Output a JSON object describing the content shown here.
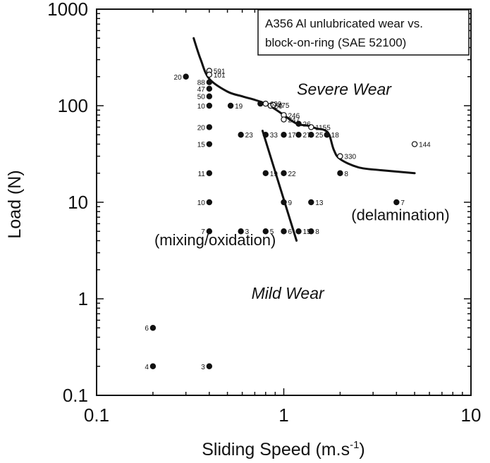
{
  "chart_data": {
    "type": "scatter",
    "title": "",
    "xlabel": "Sliding Speed (m.s-1)",
    "xlabel_main": "Sliding Speed (m.s",
    "xlabel_sup": "-1",
    "xlabel_end": ")",
    "ylabel": "Load (N)",
    "x_scale": "log",
    "y_scale": "log",
    "xlim": [
      0.1,
      10
    ],
    "ylim": [
      0.1,
      1000
    ],
    "x_ticks": [
      {
        "value": 0.1,
        "label": "0.1"
      },
      {
        "value": 1,
        "label": "1"
      },
      {
        "value": 10,
        "label": "10"
      }
    ],
    "y_ticks": [
      {
        "value": 0.1,
        "label": "0.1"
      },
      {
        "value": 1,
        "label": "1"
      },
      {
        "value": 10,
        "label": "10"
      },
      {
        "value": 100,
        "label": "100"
      },
      {
        "value": 1000,
        "label": "1000"
      }
    ],
    "legend_box": {
      "lines": [
        "A356 Al unlubricated wear vs.",
        "block-on-ring (SAE 52100)"
      ],
      "placement": "top-right"
    },
    "annotations": [
      {
        "text": "Severe Wear",
        "x": 2.1,
        "y": 130,
        "style": "large-italic"
      },
      {
        "text": "Mild Wear",
        "x": 1.05,
        "y": 1.0,
        "style": "large-italic"
      },
      {
        "text": "(mixing/oxidation)",
        "x": 0.43,
        "y": 3.6,
        "style": "normal"
      },
      {
        "text": "(delamination)",
        "x": 4.2,
        "y": 6.5,
        "style": "normal"
      }
    ],
    "series": [
      {
        "marker": "filled-circle",
        "points": [
          {
            "x": 0.3,
            "y": 200,
            "label": "20"
          },
          {
            "x": 0.4,
            "y": 175,
            "label": "88"
          },
          {
            "x": 0.4,
            "y": 150,
            "label": "47"
          },
          {
            "x": 0.4,
            "y": 125,
            "label": "50"
          },
          {
            "x": 0.4,
            "y": 100,
            "label": "10"
          },
          {
            "x": 0.52,
            "y": 100,
            "label": "19"
          },
          {
            "x": 0.4,
            "y": 60,
            "label": "20"
          },
          {
            "x": 0.4,
            "y": 40,
            "label": "15"
          },
          {
            "x": 0.59,
            "y": 50,
            "label": "23"
          },
          {
            "x": 0.4,
            "y": 20,
            "label": "11"
          },
          {
            "x": 0.4,
            "y": 10,
            "label": "10"
          },
          {
            "x": 0.4,
            "y": 5,
            "label": "7"
          },
          {
            "x": 0.59,
            "y": 5,
            "label": "3"
          },
          {
            "x": 0.8,
            "y": 5,
            "label": "5"
          },
          {
            "x": 1.0,
            "y": 5,
            "label": "6"
          },
          {
            "x": 1.2,
            "y": 5,
            "label": "15"
          },
          {
            "x": 1.4,
            "y": 5,
            "label": "8"
          },
          {
            "x": 0.8,
            "y": 20,
            "label": "19"
          },
          {
            "x": 1.0,
            "y": 20,
            "label": "22"
          },
          {
            "x": 1.0,
            "y": 10,
            "label": "9"
          },
          {
            "x": 1.4,
            "y": 10,
            "label": "13"
          },
          {
            "x": 0.75,
            "y": 105,
            "label": ""
          },
          {
            "x": 0.8,
            "y": 50,
            "label": "33"
          },
          {
            "x": 1.0,
            "y": 50,
            "label": "17"
          },
          {
            "x": 1.2,
            "y": 50,
            "label": "27"
          },
          {
            "x": 1.4,
            "y": 50,
            "label": "25"
          },
          {
            "x": 1.7,
            "y": 50,
            "label": "18"
          },
          {
            "x": 1.2,
            "y": 65,
            "label": "26"
          },
          {
            "x": 2.0,
            "y": 20,
            "label": "8"
          },
          {
            "x": 4.0,
            "y": 10,
            "label": "7"
          },
          {
            "x": 0.2,
            "y": 0.5,
            "label": "6"
          },
          {
            "x": 0.2,
            "y": 0.2,
            "label": "4"
          },
          {
            "x": 0.4,
            "y": 0.2,
            "label": "3"
          }
        ]
      },
      {
        "marker": "open-circle",
        "points": [
          {
            "x": 0.4,
            "y": 230,
            "label": "591"
          },
          {
            "x": 0.4,
            "y": 210,
            "label": "101"
          },
          {
            "x": 0.8,
            "y": 105,
            "label": "639"
          },
          {
            "x": 0.85,
            "y": 100,
            "label": "50"
          },
          {
            "x": 0.88,
            "y": 102,
            "label": "475"
          },
          {
            "x": 1.0,
            "y": 80,
            "label": "246"
          },
          {
            "x": 1.0,
            "y": 72,
            "label": "247"
          },
          {
            "x": 1.4,
            "y": 60,
            "label": "1155"
          },
          {
            "x": 2.0,
            "y": 30,
            "label": "330"
          },
          {
            "x": 5.0,
            "y": 40,
            "label": "144"
          }
        ]
      }
    ],
    "boundary_lines": [
      {
        "name": "",
        "style": "smooth",
        "points": [
          [
            0.33,
            500
          ],
          [
            0.36,
            300
          ],
          [
            0.4,
            190
          ],
          [
            0.5,
            140
          ],
          [
            0.6,
            125
          ],
          [
            0.7,
            115
          ],
          [
            0.8,
            105
          ],
          [
            0.9,
            92
          ],
          [
            1.0,
            80
          ],
          [
            1.1,
            70
          ],
          [
            1.2,
            64
          ],
          [
            1.35,
            62
          ],
          [
            1.5,
            58
          ],
          [
            1.65,
            56
          ],
          [
            1.75,
            50
          ],
          [
            1.85,
            35
          ],
          [
            2.0,
            28
          ],
          [
            2.5,
            23
          ],
          [
            3.3,
            21.5
          ],
          [
            5.0,
            20
          ]
        ]
      },
      {
        "name": "",
        "style": "straight",
        "points": [
          [
            0.77,
            55
          ],
          [
            1.17,
            4
          ]
        ]
      }
    ]
  }
}
